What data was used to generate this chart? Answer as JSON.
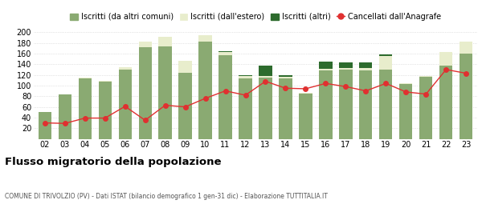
{
  "years": [
    "02",
    "03",
    "04",
    "05",
    "06",
    "07",
    "08",
    "09",
    "10",
    "11",
    "12",
    "13",
    "14",
    "15",
    "16",
    "17",
    "18",
    "19",
    "20",
    "21",
    "22",
    "23"
  ],
  "iscritti_comuni": [
    50,
    83,
    113,
    108,
    130,
    172,
    173,
    124,
    183,
    157,
    113,
    115,
    114,
    85,
    128,
    130,
    128,
    130,
    103,
    117,
    138,
    160
  ],
  "iscritti_estero": [
    0,
    0,
    2,
    1,
    4,
    10,
    18,
    22,
    12,
    6,
    5,
    3,
    3,
    2,
    3,
    3,
    5,
    25,
    1,
    1,
    25,
    22
  ],
  "iscritti_altri": [
    0,
    0,
    0,
    0,
    0,
    0,
    0,
    0,
    0,
    2,
    2,
    19,
    3,
    0,
    14,
    10,
    10,
    3,
    0,
    0,
    0,
    0
  ],
  "cancellati": [
    30,
    29,
    39,
    39,
    61,
    35,
    63,
    60,
    76,
    90,
    82,
    108,
    95,
    94,
    104,
    98,
    90,
    104,
    88,
    84,
    130,
    123
  ],
  "color_comuni": "#8aaa72",
  "color_estero": "#e8edcc",
  "color_altri": "#2d6b2d",
  "color_cancellati": "#e03030",
  "bg_color": "#ffffff",
  "grid_color": "#cccccc",
  "ylim": [
    0,
    210
  ],
  "yticks": [
    0,
    20,
    40,
    60,
    80,
    100,
    120,
    140,
    160,
    180,
    200
  ],
  "title": "Flusso migratorio della popolazione",
  "subtitle": "COMUNE DI TRIVOLZIO (PV) - Dati ISTAT (bilancio demografico 1 gen-31 dic) - Elaborazione TUTTITALIA.IT",
  "legend_labels": [
    "Iscritti (da altri comuni)",
    "Iscritti (dall'estero)",
    "Iscritti (altri)",
    "Cancellati dall'Anagrafe"
  ]
}
